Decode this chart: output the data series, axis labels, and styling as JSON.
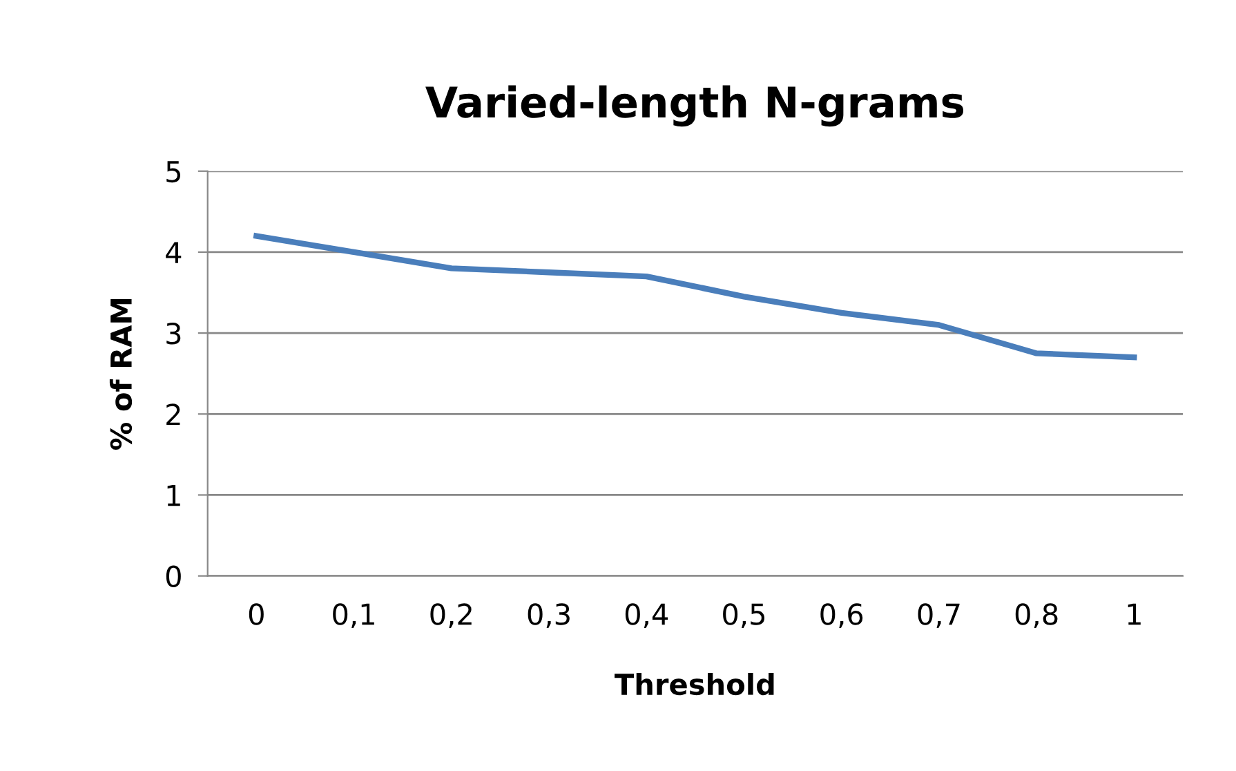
{
  "chart_data": {
    "type": "line",
    "title": "Varied-length N-grams",
    "xlabel": "Threshold",
    "ylabel": "% of RAM",
    "categories": [
      "0",
      "0,1",
      "0,2",
      "0,3",
      "0,4",
      "0,5",
      "0,6",
      "0,7",
      "0,8",
      "1"
    ],
    "series": [
      {
        "color": "#4a7ebb",
        "values": [
          4.2,
          4.0,
          3.8,
          3.75,
          3.7,
          3.45,
          3.25,
          3.1,
          2.75,
          2.7
        ]
      }
    ],
    "ylim": [
      0,
      5
    ],
    "yticks": [
      0,
      1,
      2,
      3,
      4,
      5
    ],
    "grid": "y",
    "marker": "none",
    "line_style": "solid"
  }
}
